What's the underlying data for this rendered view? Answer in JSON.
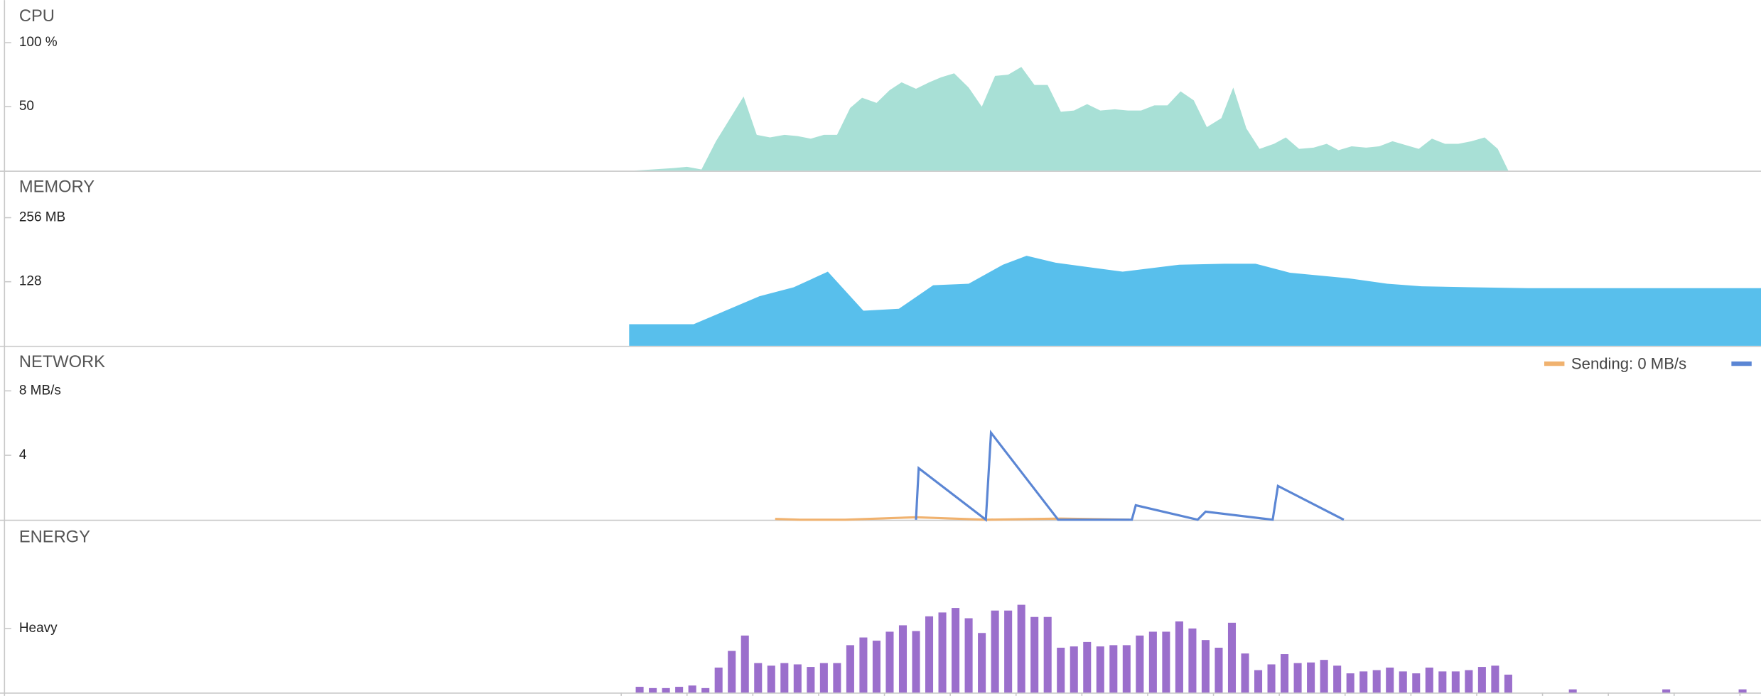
{
  "chart_data": [
    {
      "type": "area",
      "title": "CPU",
      "color": "#a8e0d6",
      "x": [
        1.0,
        4.0,
        5.0,
        6.1,
        7.2,
        9.3,
        10.3,
        11.3,
        12.4,
        13.4,
        14.4,
        15.4,
        16.4,
        17.4,
        18.3,
        19.4,
        20.4,
        21.3,
        22.4,
        23.4,
        24.3,
        25.3,
        26.4,
        27.4,
        28.4,
        29.4,
        30.4,
        31.4,
        32.4,
        33.4,
        34.4,
        35.4,
        36.4,
        37.5,
        38.5,
        39.5,
        40.5,
        41.5,
        42.5,
        43.5,
        44.5,
        45.6,
        46.5,
        47.5,
        48.5,
        49.6,
        50.5,
        51.5,
        52.6,
        53.6,
        54.5,
        55.5,
        56.6,
        57.6,
        58.6,
        59.6,
        60.6,
        61.6,
        62.6,
        63.6,
        64.6,
        65.6,
        66.6,
        67.4
      ],
      "values": [
        0,
        2,
        3,
        1,
        23,
        58,
        28,
        26,
        28,
        27,
        25,
        28,
        28,
        49,
        57,
        53,
        63,
        69,
        64,
        69,
        73,
        76,
        65,
        50,
        74,
        75,
        81,
        67,
        67,
        46,
        47,
        52,
        47,
        48,
        47,
        47,
        51,
        51,
        62,
        55,
        34,
        41,
        65,
        33,
        17,
        21,
        26,
        17,
        18,
        21,
        16,
        19,
        18,
        19,
        23,
        20,
        17,
        25,
        21,
        21,
        23,
        26,
        17,
        0
      ],
      "xlim": [
        -47.2,
        86.6
      ],
      "ylim": [
        0,
        133.3
      ],
      "yticks": [
        {
          "value": 100,
          "label": "100 %"
        },
        50
      ]
    },
    {
      "type": "area",
      "title": "MEMORY",
      "color": "#58bfec",
      "x": [
        0.6,
        5.5,
        10.5,
        13.1,
        15.7,
        18.4,
        21.1,
        23.7,
        26.4,
        29.0,
        30.8,
        33.0,
        38.1,
        42.4,
        45.8,
        48.2,
        50.8,
        55.2,
        58.2,
        60.8,
        64.6,
        68.9,
        86.6
      ],
      "values": [
        43,
        43,
        99,
        117,
        148,
        70,
        74,
        121,
        124,
        162,
        180,
        166,
        148,
        162,
        164,
        164,
        146,
        135,
        124,
        119,
        117,
        115,
        115
      ],
      "xlim": [
        -47.2,
        86.6
      ],
      "ylim": [
        0,
        350
      ],
      "yticks": [
        {
          "value": 256,
          "label": "256 MB"
        },
        128
      ]
    },
    {
      "type": "line",
      "title": "NETWORK",
      "legend": "top-right",
      "series": [
        {
          "name": "Sending: 0 MB/s",
          "color": "#f0b26f",
          "x": [
            11.7,
            13.6,
            17.0,
            22.4,
            27.7,
            33.4,
            38.6
          ],
          "values": [
            0.05,
            0,
            0,
            0.15,
            0,
            0.07,
            0
          ]
        },
        {
          "color": "#5b86d4",
          "x": [
            22.4,
            22.6,
            27.7,
            28.1,
            33.2,
            38.8,
            39.1,
            43.8,
            44.4,
            49.5,
            49.9,
            54.9
          ],
          "values": [
            0,
            3.2,
            0,
            5.4,
            0,
            0,
            0.9,
            0,
            0.5,
            0,
            2.1,
            0
          ]
        }
      ],
      "xlim": [
        -47.2,
        86.6
      ],
      "ylim": [
        0,
        10.8
      ],
      "yticks": [
        {
          "value": 8,
          "label": "8 MB/s"
        },
        4
      ]
    },
    {
      "type": "bar",
      "title": "ENERGY",
      "color": "#9b6fcc",
      "x": [
        1.4,
        2.4,
        3.4,
        4.4,
        5.4,
        6.4,
        7.4,
        8.4,
        9.4,
        10.4,
        11.4,
        12.4,
        13.4,
        14.4,
        15.4,
        16.4,
        17.4,
        18.4,
        19.4,
        20.4,
        21.4,
        22.4,
        23.4,
        24.4,
        25.4,
        26.4,
        27.4,
        28.4,
        29.4,
        30.4,
        31.4,
        32.4,
        33.4,
        34.4,
        35.4,
        36.4,
        37.4,
        38.4,
        39.4,
        40.4,
        41.4,
        42.4,
        43.4,
        44.4,
        45.4,
        46.4,
        47.4,
        48.4,
        49.4,
        50.4,
        51.4,
        52.4,
        53.4,
        54.4,
        55.4,
        56.4,
        57.4,
        58.4,
        59.4,
        60.4,
        61.4,
        62.4,
        63.4,
        64.4,
        65.4,
        66.4,
        67.4,
        72.3,
        79.4,
        85.2
      ],
      "values": [
        0.09,
        0.07,
        0.07,
        0.09,
        0.11,
        0.07,
        0.39,
        0.65,
        0.89,
        0.46,
        0.42,
        0.46,
        0.44,
        0.4,
        0.46,
        0.46,
        0.74,
        0.86,
        0.81,
        0.95,
        1.05,
        0.96,
        1.19,
        1.25,
        1.32,
        1.16,
        0.93,
        1.28,
        1.28,
        1.37,
        1.18,
        1.18,
        0.7,
        0.72,
        0.79,
        0.72,
        0.74,
        0.74,
        0.89,
        0.95,
        0.95,
        1.11,
        1.0,
        0.82,
        0.7,
        1.09,
        0.61,
        0.35,
        0.44,
        0.6,
        0.46,
        0.47,
        0.51,
        0.42,
        0.3,
        0.33,
        0.35,
        0.39,
        0.33,
        0.3,
        0.39,
        0.33,
        0.33,
        0.35,
        0.4,
        0.42,
        0.28,
        0.05,
        0.05,
        0.05
      ],
      "xlim": [
        -47.2,
        86.6
      ],
      "ylim": [
        0,
        2.68
      ],
      "yticks": [
        {
          "value": 1,
          "label": "Heavy"
        }
      ],
      "xticks": [
        0,
        5,
        10,
        15,
        20,
        25,
        30,
        35,
        40,
        45,
        50,
        55,
        60,
        65,
        70,
        75,
        80,
        85
      ]
    }
  ]
}
